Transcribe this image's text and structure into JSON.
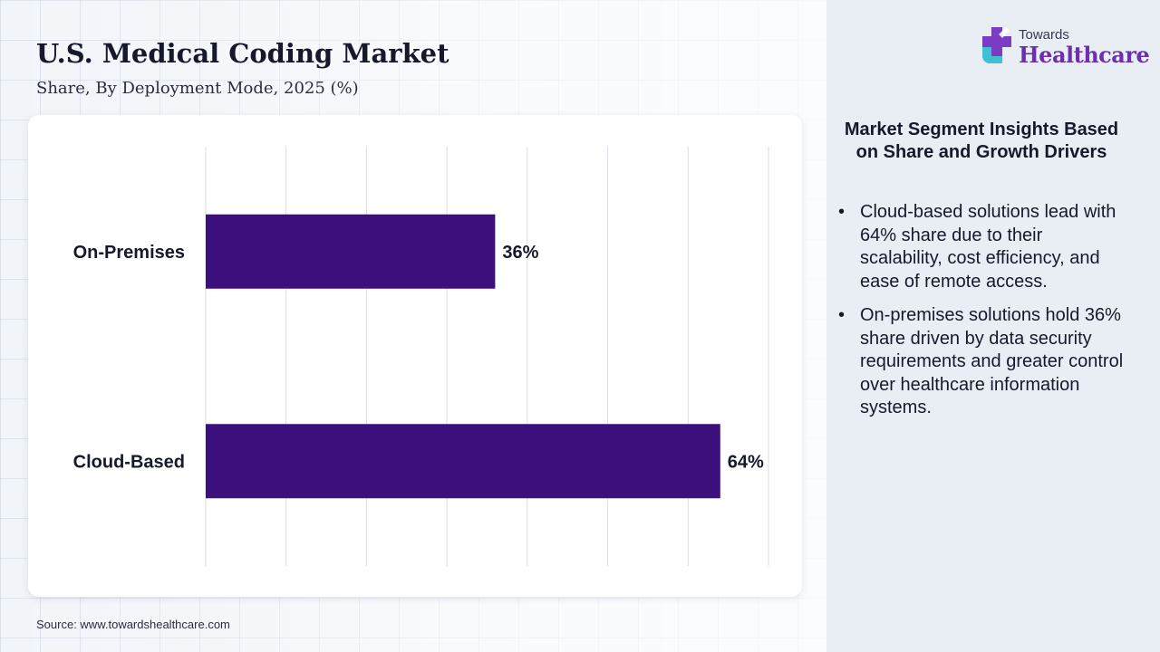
{
  "header": {
    "title": "U.S. Medical Coding Market",
    "subtitle": "Share, By Deployment Mode, 2025 (%)"
  },
  "logo": {
    "top_text": "Towards",
    "bottom_text": "Healthcare",
    "icon": "medical-cross-icon"
  },
  "chart_data": {
    "type": "bar",
    "orientation": "horizontal",
    "categories": [
      "On-Premises",
      "Cloud-Based"
    ],
    "values": [
      36,
      64
    ],
    "value_labels": [
      "36%",
      "64%"
    ],
    "xlim": [
      0,
      70
    ],
    "grid": true,
    "bar_color": "#3d0f7c"
  },
  "insights": {
    "heading": "Market Segment Insights Based on Share and Growth Drivers",
    "bullets": [
      "Cloud-based solutions lead with 64% share due to their scalability, cost efficiency, and ease of remote access.",
      "On-premises solutions hold 36% share driven by data security requirements and greater control over healthcare information systems."
    ]
  },
  "source": "Source: www.towardshealthcare.com",
  "colors": {
    "accent": "#6b2fb0",
    "bar": "#3d0f7c",
    "text": "#16192b"
  }
}
